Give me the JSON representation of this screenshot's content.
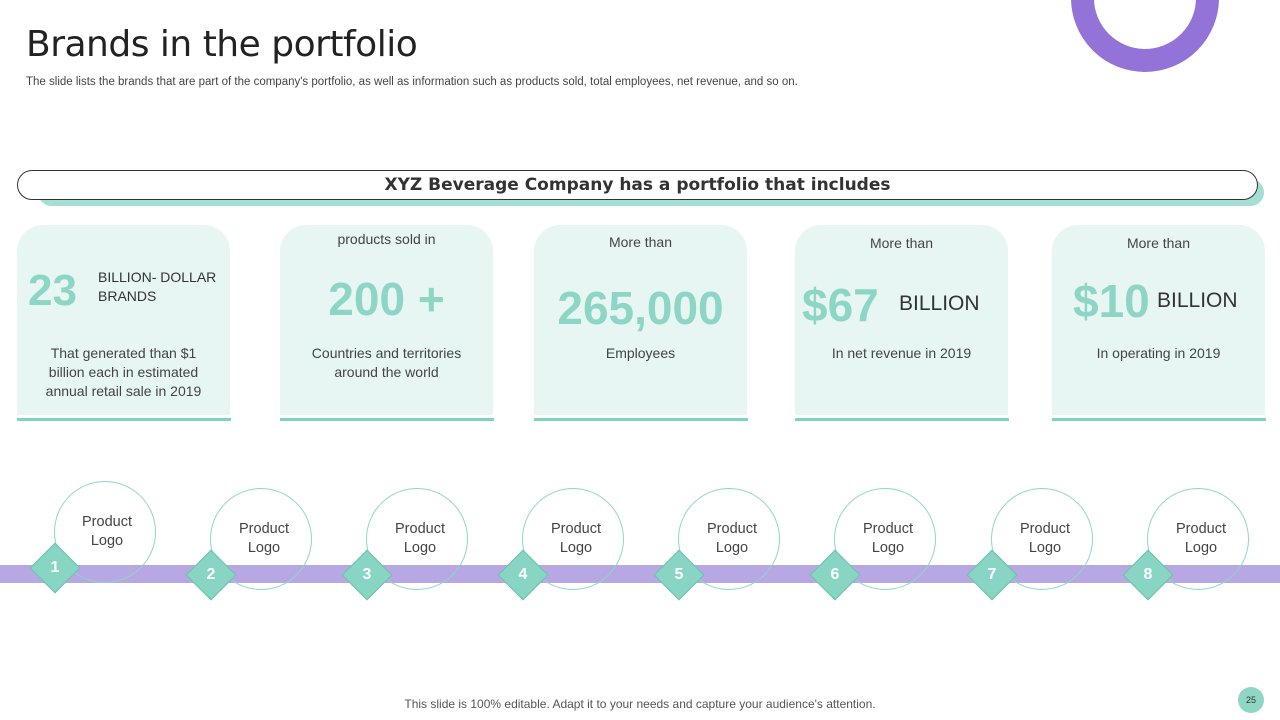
{
  "slide": {
    "title": "Brands in the portfolio",
    "subtitle": "The slide lists the brands that are part of the company's portfolio, as well as information such as products sold, total employees, net revenue, and so on.",
    "banner": "XYZ Beverage Company has a portfolio that includes",
    "footer": "This slide is 100% editable.  Adapt it to your needs and capture your audience's  attention.",
    "page_number": "25"
  },
  "colors": {
    "accent_teal": "#8dd6c6",
    "card_bg": "#e8f6f3",
    "accent_purple": "#9473d8",
    "timeline": "#b7a7e2"
  },
  "cards": [
    {
      "big": "23",
      "label_line1": "BILLION- DOLLAR",
      "label_line2": "BRANDS",
      "desc_line1": "That generated than $1",
      "desc_line2": "billion each  in estimated",
      "desc_line3": "annual retail sale in 2019"
    },
    {
      "top": "products sold in",
      "big": "200 +",
      "desc_line1": "Countries and territories",
      "desc_line2": "around the world"
    },
    {
      "top": "More than",
      "big": "265,000",
      "desc_line1": "Employees"
    },
    {
      "top": "More than",
      "big": "$67",
      "unit": "BILLION",
      "desc_line1": "In net revenue in 2019"
    },
    {
      "top": "More than",
      "big": "$10",
      "unit": "BILLION",
      "desc_line1": "In operating in 2019"
    }
  ],
  "products": [
    {
      "num": "1",
      "line1": "Product",
      "line2": "Logo"
    },
    {
      "num": "2",
      "line1": "Product",
      "line2": "Logo"
    },
    {
      "num": "3",
      "line1": "Product",
      "line2": "Logo"
    },
    {
      "num": "4",
      "line1": "Product",
      "line2": "Logo"
    },
    {
      "num": "5",
      "line1": "Product",
      "line2": "Logo"
    },
    {
      "num": "6",
      "line1": "Product",
      "line2": "Logo"
    },
    {
      "num": "7",
      "line1": "Product",
      "line2": "Logo"
    },
    {
      "num": "8",
      "line1": "Product",
      "line2": "Logo"
    }
  ]
}
